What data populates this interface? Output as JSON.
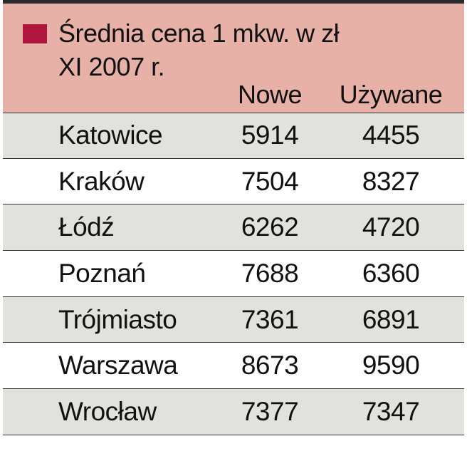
{
  "chart_data": {
    "type": "table",
    "title": "Średnia cena 1 mkw. w zł",
    "subtitle": "XI 2007 r.",
    "columns": [
      "Nowe",
      "Używane"
    ],
    "rows": [
      {
        "city": "Katowice",
        "values": [
          "5914",
          "4455"
        ]
      },
      {
        "city": "Kraków",
        "values": [
          "7504",
          "8327"
        ]
      },
      {
        "city": "Łódź",
        "values": [
          "6262",
          "4720"
        ]
      },
      {
        "city": "Poznań",
        "values": [
          "7688",
          "6360"
        ]
      },
      {
        "city": "Trójmiasto",
        "values": [
          "7361",
          "6891"
        ]
      },
      {
        "city": "Warszawa",
        "values": [
          "8673",
          "9590"
        ]
      },
      {
        "city": "Wrocław",
        "values": [
          "7377",
          "7347"
        ]
      }
    ]
  },
  "colors": {
    "header_background": "#e8b1a7",
    "legend_swatch": "#b0153e",
    "row_shade": "#e1e1de",
    "rule": "#2b2b2b"
  }
}
